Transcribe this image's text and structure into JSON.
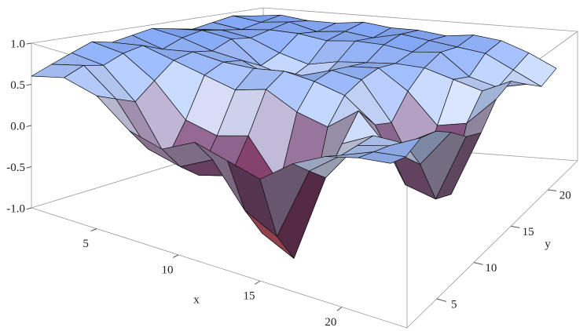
{
  "chart_data": {
    "type": "surface",
    "x_label": "x",
    "y_label": "y",
    "x": [
      1,
      3,
      5,
      7,
      9,
      11,
      13,
      15,
      17,
      19,
      21,
      23
    ],
    "y": [
      1,
      3,
      5,
      7,
      9,
      11,
      13,
      15,
      17,
      19,
      21,
      23
    ],
    "z": [
      [
        0.6,
        0.7,
        0.8,
        0.9,
        0.85,
        0.9,
        0.95,
        0.9,
        0.85,
        0.9,
        0.95,
        0.9
      ],
      [
        0.7,
        0.8,
        0.75,
        0.85,
        0.9,
        0.8,
        0.9,
        0.95,
        0.9,
        0.85,
        0.9,
        0.95
      ],
      [
        0.6,
        0.5,
        0.4,
        0.6,
        0.8,
        0.85,
        0.8,
        0.9,
        0.85,
        0.9,
        0.95,
        0.9
      ],
      [
        0.3,
        0.0,
        -0.2,
        0.2,
        0.7,
        0.8,
        0.75,
        0.6,
        0.7,
        0.9,
        0.85,
        0.9
      ],
      [
        0.2,
        -0.1,
        -0.3,
        0.1,
        0.6,
        0.8,
        0.6,
        0.5,
        0.6,
        0.85,
        0.9,
        0.95
      ],
      [
        0.4,
        0.1,
        -0.2,
        0.2,
        0.7,
        0.85,
        0.7,
        0.55,
        0.7,
        0.9,
        0.85,
        0.9
      ],
      [
        0.3,
        -0.4,
        -0.8,
        -0.3,
        0.5,
        0.8,
        0.85,
        0.8,
        0.75,
        0.9,
        0.95,
        0.9
      ],
      [
        0.2,
        -0.6,
        -1.0,
        -0.5,
        0.4,
        0.7,
        0.8,
        0.85,
        0.8,
        0.85,
        0.9,
        0.85
      ],
      [
        0.5,
        0.3,
        0.1,
        0.4,
        0.7,
        0.4,
        0.3,
        0.6,
        0.8,
        0.9,
        0.85,
        0.9
      ],
      [
        0.7,
        0.6,
        0.6,
        0.6,
        0.3,
        -0.3,
        -0.4,
        0.2,
        0.7,
        0.6,
        0.8,
        0.85
      ],
      [
        0.8,
        0.75,
        0.7,
        0.6,
        0.2,
        -0.4,
        -0.5,
        0.3,
        0.6,
        0.5,
        0.6,
        0.7
      ],
      [
        0.85,
        0.8,
        0.9,
        0.85,
        0.7,
        0.5,
        0.4,
        0.7,
        0.8,
        0.6,
        0.4,
        0.5
      ]
    ],
    "xlim": [
      1,
      24
    ],
    "ylim": [
      1,
      24
    ],
    "zlim": [
      -1,
      1
    ],
    "xticks": [
      5,
      10,
      15,
      20
    ],
    "yticks": [
      5,
      10,
      15,
      20
    ],
    "zticks": [
      {
        "value": -1,
        "label": "-1.0"
      },
      {
        "value": -0.5,
        "label": "-0.5"
      },
      {
        "value": 0,
        "label": "0.0"
      },
      {
        "value": 0.5,
        "label": "0.5"
      },
      {
        "value": 1,
        "label": "1.0"
      }
    ]
  }
}
